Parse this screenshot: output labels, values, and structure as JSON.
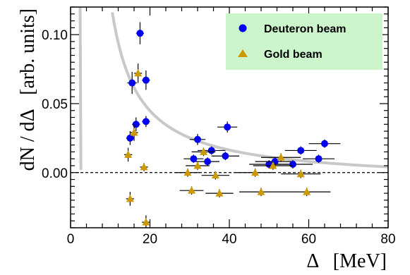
{
  "chart_data": {
    "type": "scatter",
    "xlabel": "Δ   [MeV]",
    "ylabel": "dN / dΔ   [arb. units]",
    "xlim": [
      0,
      80
    ],
    "ylim": [
      -0.04,
      0.12
    ],
    "x_ticks": [
      0,
      20,
      40,
      60,
      80
    ],
    "y_ticks": [
      0.0,
      0.05,
      0.1
    ],
    "x_tick_labels": [
      "0",
      "20",
      "40",
      "60",
      "80"
    ],
    "y_tick_labels": [
      "0.00",
      "0.05",
      "0.10"
    ],
    "grid": false,
    "legend": {
      "placement": "top-right",
      "background": "#ccf5cc"
    },
    "reference_line": {
      "y": 0,
      "style": "dashed"
    },
    "curve": {
      "color": "#c8c8c8"
    },
    "series": [
      {
        "name": "Deuteron beam",
        "marker": "circle",
        "color": "#0000ee",
        "points": [
          {
            "x": 15.0,
            "y": 0.025,
            "xerr": 1.0,
            "yerr": 0.005
          },
          {
            "x": 15.5,
            "y": 0.065,
            "xerr": 1.2,
            "yerr": 0.008
          },
          {
            "x": 16.5,
            "y": 0.035,
            "xerr": 1.0,
            "yerr": 0.005
          },
          {
            "x": 17.5,
            "y": 0.101,
            "xerr": 1.0,
            "yerr": 0.008
          },
          {
            "x": 19.0,
            "y": 0.067,
            "xerr": 1.0,
            "yerr": 0.007
          },
          {
            "x": 19.0,
            "y": 0.037,
            "xerr": 1.0,
            "yerr": 0.004
          },
          {
            "x": 31.0,
            "y": 0.01,
            "xerr": 2.5,
            "yerr": 0.003
          },
          {
            "x": 32.0,
            "y": 0.024,
            "xerr": 2.0,
            "yerr": 0.004
          },
          {
            "x": 34.5,
            "y": 0.008,
            "xerr": 3.0,
            "yerr": 0.003
          },
          {
            "x": 35.5,
            "y": 0.016,
            "xerr": 3.5,
            "yerr": 0.003
          },
          {
            "x": 39.0,
            "y": 0.012,
            "xerr": 3.5,
            "yerr": 0.003
          },
          {
            "x": 39.5,
            "y": 0.033,
            "xerr": 2.5,
            "yerr": 0.004
          },
          {
            "x": 50.0,
            "y": 0.006,
            "xerr": 5.0,
            "yerr": 0.003
          },
          {
            "x": 51.5,
            "y": 0.008,
            "xerr": 5.0,
            "yerr": 0.003
          },
          {
            "x": 56.0,
            "y": 0.006,
            "xerr": 5.0,
            "yerr": 0.003
          },
          {
            "x": 58.0,
            "y": 0.016,
            "xerr": 4.0,
            "yerr": 0.003
          },
          {
            "x": 62.5,
            "y": 0.01,
            "xerr": 4.0,
            "yerr": 0.003
          },
          {
            "x": 64.0,
            "y": 0.021,
            "xerr": 4.0,
            "yerr": 0.003
          }
        ]
      },
      {
        "name": "Gold beam",
        "marker": "triangle",
        "color": "#cc9900",
        "points": [
          {
            "x": 14.5,
            "y": 0.013,
            "xerr": 1.0,
            "yerr": 0.005
          },
          {
            "x": 15.0,
            "y": -0.019,
            "xerr": 1.0,
            "yerr": 0.005
          },
          {
            "x": 16.0,
            "y": 0.029,
            "xerr": 1.0,
            "yerr": 0.006
          },
          {
            "x": 17.0,
            "y": 0.072,
            "xerr": 1.0,
            "yerr": 0.007
          },
          {
            "x": 18.5,
            "y": 0.004,
            "xerr": 1.0,
            "yerr": 0.003
          },
          {
            "x": 19.0,
            "y": -0.036,
            "xerr": 1.0,
            "yerr": 0.005
          },
          {
            "x": 29.5,
            "y": 0.0,
            "xerr": 3.0,
            "yerr": 0.003
          },
          {
            "x": 30.5,
            "y": -0.013,
            "xerr": 3.0,
            "yerr": 0.003
          },
          {
            "x": 32.0,
            "y": 0.005,
            "xerr": 3.0,
            "yerr": 0.003
          },
          {
            "x": 33.5,
            "y": 0.015,
            "xerr": 3.0,
            "yerr": 0.003
          },
          {
            "x": 36.5,
            "y": -0.002,
            "xerr": 3.5,
            "yerr": 0.003
          },
          {
            "x": 37.5,
            "y": -0.015,
            "xerr": 3.5,
            "yerr": 0.003
          },
          {
            "x": 46.5,
            "y": 0.0,
            "xerr": 5.0,
            "yerr": 0.003
          },
          {
            "x": 48.0,
            "y": -0.014,
            "xerr": 5.5,
            "yerr": 0.003
          },
          {
            "x": 51.0,
            "y": 0.005,
            "xerr": 5.0,
            "yerr": 0.003
          },
          {
            "x": 53.0,
            "y": 0.011,
            "xerr": 5.0,
            "yerr": 0.003
          },
          {
            "x": 58.0,
            "y": -0.001,
            "xerr": 5.0,
            "yerr": 0.003
          },
          {
            "x": 59.5,
            "y": -0.014,
            "xerr": 6.0,
            "yerr": 0.003
          }
        ]
      }
    ]
  }
}
